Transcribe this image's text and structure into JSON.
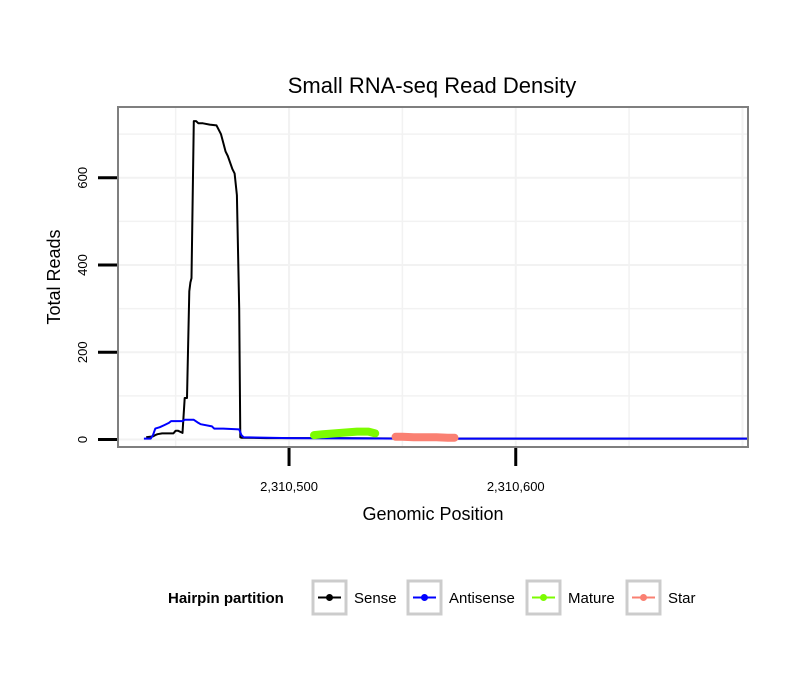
{
  "chart_data": {
    "type": "line",
    "title": "Small RNA-seq Read Density",
    "xlabel": "Genomic Position",
    "ylabel": "Total Reads",
    "xlim": [
      2310425,
      2310702
    ],
    "ylim": [
      -15,
      760
    ],
    "x_ticks": [
      2310500,
      2310600
    ],
    "x_tick_labels": [
      "2,310,500",
      "2,310,600"
    ],
    "y_ticks": [
      0,
      200,
      400,
      600
    ],
    "y_tick_labels": [
      "0",
      "200",
      "400",
      "600"
    ],
    "grid": true,
    "legend": {
      "title": "Hairpin partition",
      "placement": "bottom",
      "entries": [
        {
          "label": "Sense",
          "color": "#000000"
        },
        {
          "label": "Antisense",
          "color": "#0000ff"
        },
        {
          "label": "Mature",
          "color": "#7cfc00"
        },
        {
          "label": "Star",
          "color": "#fa8072"
        }
      ]
    },
    "series": [
      {
        "name": "Sense",
        "color": "#000000",
        "x": [
          2310437,
          2310440,
          2310441,
          2310442,
          2310444,
          2310449,
          2310450,
          2310451,
          2310453,
          2310454,
          2310455,
          2310456,
          2310456.5,
          2310457,
          2310458,
          2310459,
          2310460,
          2310462,
          2310465,
          2310468,
          2310470,
          2310471,
          2310472,
          2310473,
          2310475,
          2310476,
          2310477,
          2310478,
          2310478.5,
          2310479,
          2310480,
          2310490,
          2310500,
          2310520,
          2310560,
          2310600,
          2310650,
          2310702
        ],
        "values": [
          5,
          7,
          10,
          12,
          14,
          14,
          20,
          20,
          15,
          95,
          95,
          340,
          360,
          370,
          730,
          730,
          725,
          725,
          722,
          720,
          700,
          680,
          660,
          650,
          620,
          610,
          560,
          300,
          5,
          4,
          4,
          3,
          3,
          3,
          2,
          2,
          2,
          2
        ]
      },
      {
        "name": "Antisense",
        "color": "#0000ff",
        "x": [
          2310436,
          2310439,
          2310440,
          2310441,
          2310443,
          2310445,
          2310447,
          2310448,
          2310449,
          2310450,
          2310453,
          2310454,
          2310458,
          2310460,
          2310461,
          2310466,
          2310467,
          2310471,
          2310478,
          2310479,
          2310480,
          2310500,
          2310550,
          2310600,
          2310650,
          2310702
        ],
        "values": [
          2,
          2,
          10,
          25,
          28,
          33,
          38,
          42,
          42,
          42,
          42,
          45,
          45,
          38,
          35,
          30,
          25,
          25,
          23,
          10,
          5,
          3,
          2,
          2,
          2,
          2
        ]
      },
      {
        "name": "Mature",
        "color": "#7cfc00",
        "x": [
          2310511,
          2310515,
          2310520,
          2310525,
          2310530,
          2310535,
          2310538
        ],
        "values": [
          10,
          12,
          14,
          16,
          18,
          18,
          14
        ]
      },
      {
        "name": "Star",
        "color": "#fa8072",
        "x": [
          2310547,
          2310550,
          2310555,
          2310560,
          2310565,
          2310570,
          2310573
        ],
        "values": [
          6,
          6,
          5,
          5,
          5,
          4,
          4
        ]
      }
    ]
  }
}
